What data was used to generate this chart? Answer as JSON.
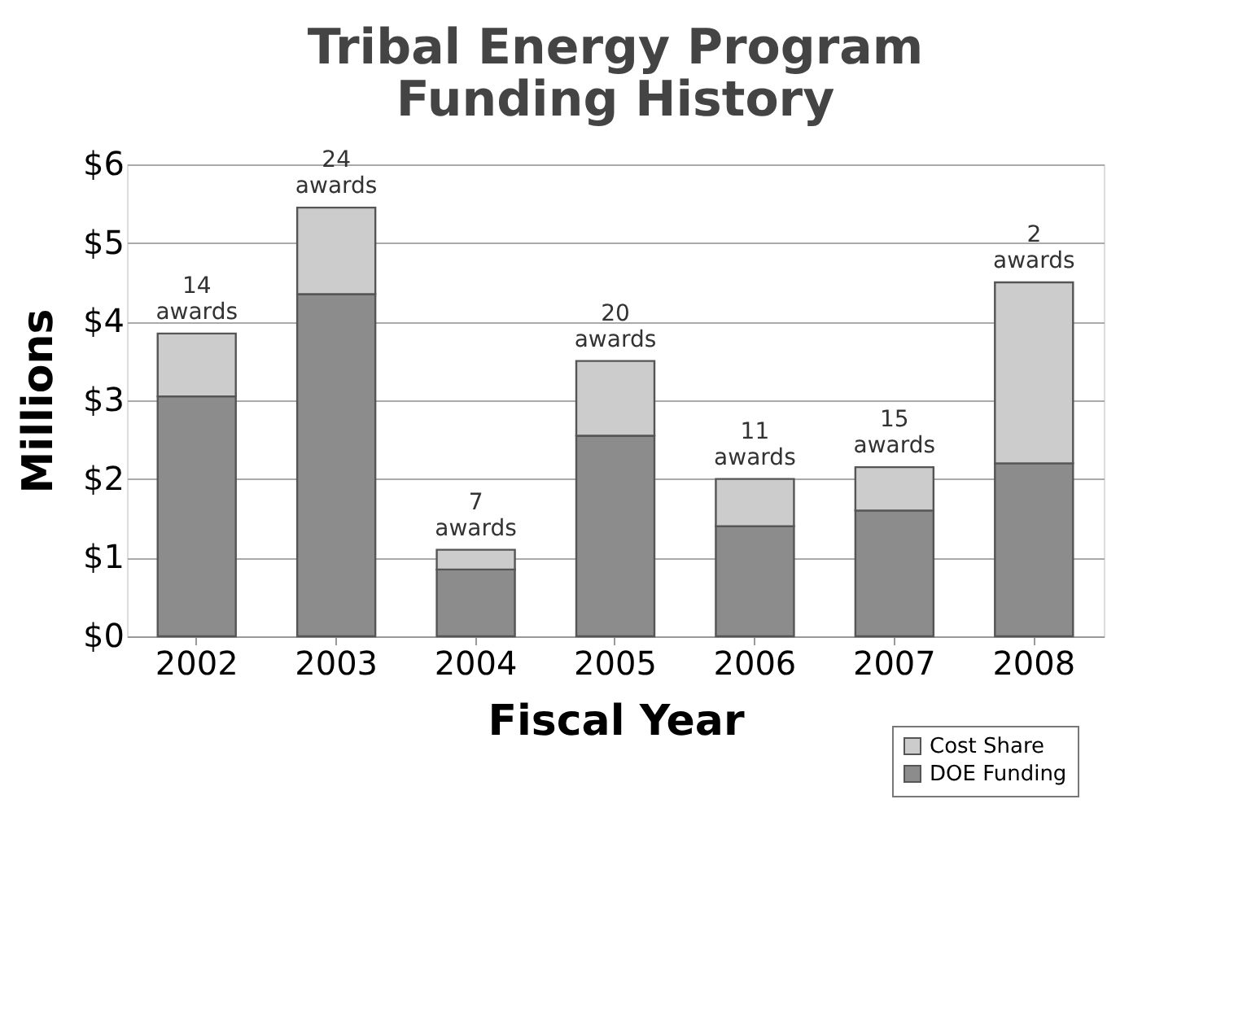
{
  "chart_data": {
    "type": "bar",
    "title": "Tribal Energy Program\nFunding History",
    "xlabel": "Fiscal Year",
    "ylabel": "Millions",
    "categories": [
      "2002",
      "2003",
      "2004",
      "2005",
      "2006",
      "2007",
      "2008"
    ],
    "stacked": true,
    "series": [
      {
        "name": "DOE Funding",
        "color": "#8c8c8c",
        "values": [
          3.05,
          4.35,
          0.85,
          2.55,
          1.4,
          1.6,
          2.2
        ]
      },
      {
        "name": "Cost Share",
        "color": "#cccccc",
        "values": [
          0.8,
          1.1,
          0.25,
          0.95,
          0.6,
          0.55,
          2.3
        ]
      }
    ],
    "ylim": [
      0,
      6
    ],
    "yticks": [
      {
        "value": 0,
        "label": "$0"
      },
      {
        "value": 1,
        "label": "$1"
      },
      {
        "value": 2,
        "label": "$2"
      },
      {
        "value": 3,
        "label": "$3"
      },
      {
        "value": 4,
        "label": "$4"
      },
      {
        "value": 5,
        "label": "$5"
      },
      {
        "value": 6,
        "label": "$6"
      }
    ],
    "grid": "y",
    "legend": "bottom right",
    "annotations": [
      {
        "text": "14 awards",
        "x": "2002",
        "y": 3.85
      },
      {
        "text": "24 awards",
        "x": "2003",
        "y": 5.45
      },
      {
        "text": "7 awards",
        "x": "2004",
        "y": 1.1
      },
      {
        "text": "20 awards",
        "x": "2005",
        "y": 3.5
      },
      {
        "text": "11 awards",
        "x": "2006",
        "y": 2.0
      },
      {
        "text": "15 awards",
        "x": "2007",
        "y": 2.15
      },
      {
        "text": "2 awards",
        "x": "2008",
        "y": 4.5
      }
    ]
  }
}
